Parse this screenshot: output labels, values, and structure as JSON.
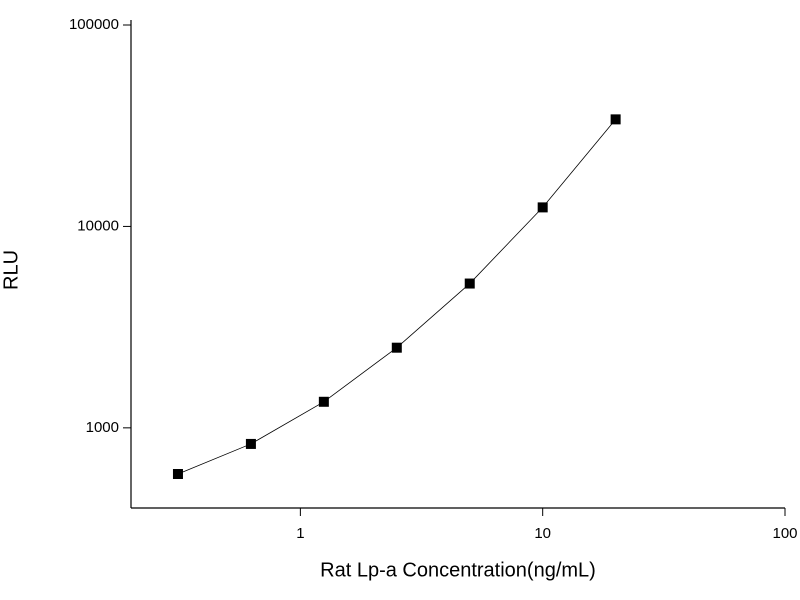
{
  "chart_data": {
    "type": "line",
    "x_label": "Rat Lp-a Concentration(ng/mL)",
    "y_label": "RLU",
    "x": [
      0.3125,
      0.625,
      1.25,
      2.5,
      5,
      10,
      20
    ],
    "series": [
      {
        "color": "#000000",
        "values": [
          590,
          832,
          1347,
          2500,
          5205,
          12430,
          34000
        ]
      }
    ],
    "xlim": [
      0.2,
      100
    ],
    "xticks": [
      1,
      10,
      100
    ],
    "xscale": "log",
    "ylim": [
      400,
      100000
    ],
    "yticks": [
      1000,
      10000,
      100000
    ],
    "yscale": "log",
    "markers": true,
    "grid": false
  }
}
